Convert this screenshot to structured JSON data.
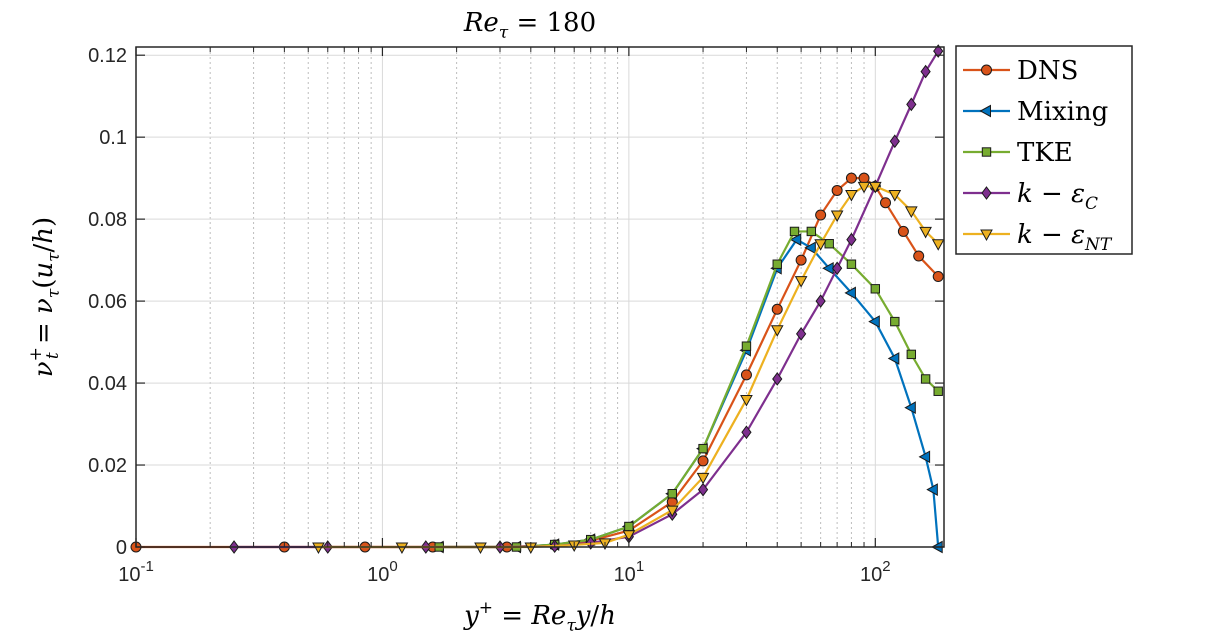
{
  "chart_data": {
    "type": "line",
    "title": "Re_τ = 180",
    "xlabel": "y⁺ = Re_τ y/h",
    "ylabel": "ν_t⁺ = ν_τ(u_τ/h)",
    "xscale": "log",
    "xlim": [
      0.1,
      190
    ],
    "ylim": [
      0,
      0.122
    ],
    "x_ticks": [
      0.1,
      1,
      10,
      100
    ],
    "x_tick_labels": [
      "10",
      "10",
      "10",
      "10"
    ],
    "x_tick_exponents": [
      "-1",
      "0",
      "1",
      "2"
    ],
    "y_ticks": [
      0,
      0.02,
      0.04,
      0.06,
      0.08,
      0.1,
      0.12
    ],
    "y_tick_labels": [
      "0",
      "0.02",
      "0.04",
      "0.06",
      "0.08",
      "0.1",
      "0.12"
    ],
    "grid": true,
    "legend_position": "outside-top-right",
    "series": [
      {
        "name": "DNS",
        "color": "#D95319",
        "marker": "circle",
        "x": [
          0.1,
          0.4,
          0.85,
          1.6,
          3.2,
          5,
          7,
          10,
          15,
          20,
          30,
          40,
          50,
          60,
          70,
          80,
          90,
          100,
          110,
          130,
          150,
          180
        ],
        "y": [
          0,
          0,
          0,
          0,
          0,
          0.0005,
          0.0015,
          0.004,
          0.011,
          0.021,
          0.042,
          0.058,
          0.07,
          0.081,
          0.087,
          0.09,
          0.09,
          0.088,
          0.084,
          0.077,
          0.071,
          0.066
        ]
      },
      {
        "name": "Mixing",
        "color": "#0072BD",
        "marker": "triangle-left",
        "x": [
          1.7,
          3.5,
          5,
          7,
          10,
          15,
          20,
          30,
          40,
          48,
          55,
          65,
          80,
          100,
          120,
          140,
          160,
          172,
          180
        ],
        "y": [
          0,
          0,
          0.0006,
          0.0018,
          0.005,
          0.013,
          0.024,
          0.048,
          0.068,
          0.075,
          0.073,
          0.068,
          0.062,
          0.055,
          0.046,
          0.034,
          0.022,
          0.014,
          0
        ]
      },
      {
        "name": "TKE",
        "color": "#77AC30",
        "marker": "square",
        "x": [
          1.7,
          3.5,
          5,
          7,
          10,
          15,
          20,
          30,
          40,
          47,
          55,
          65,
          80,
          100,
          120,
          140,
          160,
          180
        ],
        "y": [
          0,
          0,
          0.0006,
          0.0018,
          0.005,
          0.013,
          0.024,
          0.049,
          0.069,
          0.077,
          0.077,
          0.074,
          0.069,
          0.063,
          0.055,
          0.047,
          0.041,
          0.038
        ]
      },
      {
        "name": "k − ε_C",
        "color": "#7E2F8E",
        "marker": "diamond",
        "x": [
          0.25,
          0.6,
          1.5,
          3,
          5,
          7,
          10,
          15,
          20,
          30,
          40,
          50,
          60,
          70,
          80,
          100,
          120,
          140,
          160,
          180
        ],
        "y": [
          0,
          0,
          0,
          0,
          0.0002,
          0.001,
          0.0025,
          0.008,
          0.014,
          0.028,
          0.041,
          0.052,
          0.06,
          0.068,
          0.075,
          0.088,
          0.099,
          0.108,
          0.116,
          0.121
        ]
      },
      {
        "name": "k − ε_NT",
        "color": "#EDB120",
        "marker": "triangle-down",
        "x": [
          0.55,
          1.2,
          2.5,
          4,
          6,
          8,
          10,
          15,
          20,
          30,
          40,
          50,
          60,
          70,
          80,
          90,
          100,
          120,
          140,
          160,
          180
        ],
        "y": [
          0,
          0,
          0,
          0,
          0.0005,
          0.001,
          0.003,
          0.009,
          0.017,
          0.036,
          0.053,
          0.065,
          0.074,
          0.081,
          0.086,
          0.088,
          0.088,
          0.086,
          0.082,
          0.077,
          0.074
        ]
      }
    ]
  }
}
